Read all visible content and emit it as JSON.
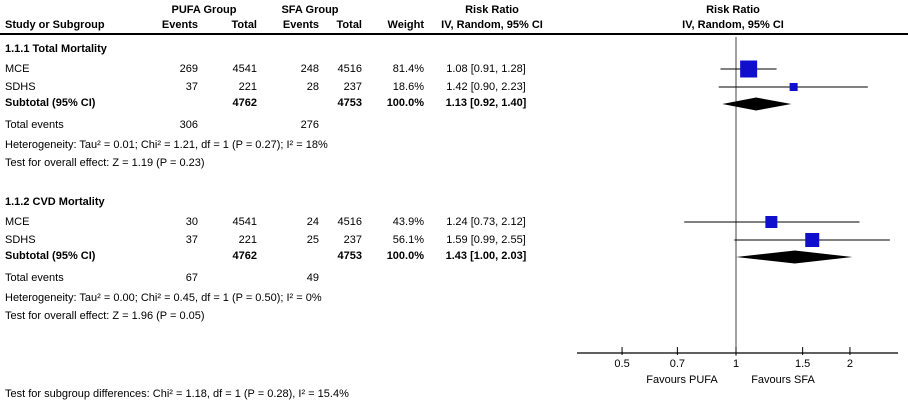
{
  "header": {
    "study_col": "Study or Subgroup",
    "group1": "PUFA Group",
    "group2": "SFA Group",
    "events": "Events",
    "total": "Total",
    "weight": "Weight",
    "rr_title": "Risk Ratio",
    "rr_sub": "IV, Random, 95% CI",
    "plot_title": "Risk Ratio",
    "plot_sub": "IV, Random, 95% CI"
  },
  "footer": {
    "subgroup_test": "Test for subgroup differences: Chi² = 1.18, df = 1 (P = 0.28), I² = 15.4%"
  },
  "axis": {
    "tick_labels": [
      "0.5",
      "0.7",
      "1",
      "1.5",
      "2"
    ],
    "tick_values": [
      0.5,
      0.7,
      1,
      1.5,
      2
    ],
    "favours_left": "Favours PUFA",
    "favours_right": "Favours SFA",
    "scale": "log",
    "null_value": 1
  },
  "colors": {
    "square": "#1010CC",
    "diamond": "#000000",
    "ci_line": "#000000",
    "null_line": "#444444",
    "axis": "#000000"
  },
  "chart_data": {
    "type": "forest",
    "effect_measure": "Risk Ratio",
    "method": "IV, Random, 95% CI",
    "x_scale": "log",
    "x_ticks": [
      0.5,
      0.7,
      1,
      1.5,
      2
    ],
    "null_line": 1,
    "sections": [
      {
        "heading": "1.1.1 Total Mortality",
        "studies": [
          {
            "name": "MCE",
            "e1": "269",
            "t1": "4541",
            "e2": "248",
            "t2": "4516",
            "weight": "81.4%",
            "rr_text": "1.08 [0.91, 1.28]",
            "rr": 1.08,
            "lo": 0.91,
            "hi": 1.28
          },
          {
            "name": "SDHS",
            "e1": "37",
            "t1": "221",
            "e2": "28",
            "t2": "237",
            "weight": "18.6%",
            "rr_text": "1.42 [0.90, 2.23]",
            "rr": 1.42,
            "lo": 0.9,
            "hi": 2.23
          }
        ],
        "subtotal": {
          "label": "Subtotal (95% CI)",
          "t1": "4762",
          "t2": "4753",
          "weight": "100.0%",
          "rr_text": "1.13 [0.92, 1.40]",
          "rr": 1.13,
          "lo": 0.92,
          "hi": 1.4
        },
        "total_events": {
          "label": "Total events",
          "e1": "306",
          "e2": "276"
        },
        "heterogeneity": "Heterogeneity: Tau² = 0.01; Chi² = 1.21, df = 1 (P = 0.27); I² = 18%",
        "overall_test": "Test for overall effect: Z = 1.19 (P = 0.23)"
      },
      {
        "heading": "1.1.2 CVD Mortality",
        "studies": [
          {
            "name": "MCE",
            "e1": "30",
            "t1": "4541",
            "e2": "24",
            "t2": "4516",
            "weight": "43.9%",
            "rr_text": "1.24 [0.73, 2.12]",
            "rr": 1.24,
            "lo": 0.73,
            "hi": 2.12
          },
          {
            "name": "SDHS",
            "e1": "37",
            "t1": "221",
            "e2": "25",
            "t2": "237",
            "weight": "56.1%",
            "rr_text": "1.59 [0.99, 2.55]",
            "rr": 1.59,
            "lo": 0.99,
            "hi": 2.55
          }
        ],
        "subtotal": {
          "label": "Subtotal (95% CI)",
          "t1": "4762",
          "t2": "4753",
          "weight": "100.0%",
          "rr_text": "1.43 [1.00, 2.03]",
          "rr": 1.43,
          "lo": 1.0,
          "hi": 2.03
        },
        "total_events": {
          "label": "Total events",
          "e1": "67",
          "e2": "49"
        },
        "heterogeneity": "Heterogeneity: Tau² = 0.00; Chi² = 0.45, df = 1 (P = 0.50); I² = 0%",
        "overall_test": "Test for overall effect: Z = 1.96 (P = 0.05)"
      }
    ]
  }
}
